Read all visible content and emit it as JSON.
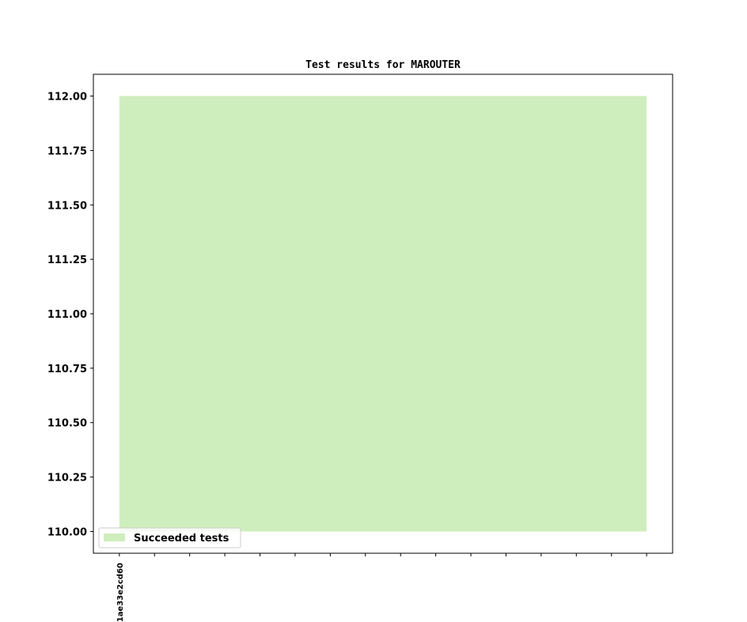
{
  "chart_data": {
    "type": "area",
    "title": "Test results for MAROUTER",
    "xlabel": "",
    "ylabel": "",
    "x_tick_count": 16,
    "x_tick_labels": [
      "1ae33e2cd60"
    ],
    "xlim": [
      -0.74,
      15.74
    ],
    "ylim": [
      109.9,
      112.1
    ],
    "y_ticks": [
      110.0,
      110.25,
      110.5,
      110.75,
      111.0,
      111.25,
      111.5,
      111.75,
      112.0
    ],
    "y_tick_labels": [
      "110.00",
      "110.25",
      "110.50",
      "110.75",
      "111.00",
      "111.25",
      "111.50",
      "111.75",
      "112.00"
    ],
    "series": [
      {
        "name": "Succeeded tests",
        "color": "#cfeebe",
        "x": [
          0,
          15
        ],
        "lower": [
          110,
          110
        ],
        "upper": [
          112,
          112
        ]
      }
    ],
    "legend": {
      "placement": "lower-left",
      "entries": [
        "Succeeded tests"
      ]
    },
    "grid": false
  }
}
